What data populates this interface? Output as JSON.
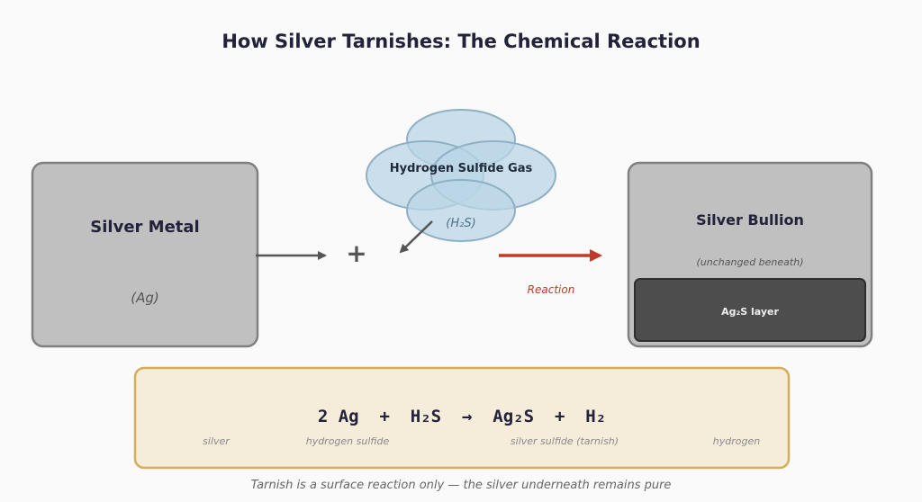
{
  "title": "How Silver Tarnishes: The Chemical Reaction",
  "silver_metal": {
    "name": "Silver Metal",
    "formula": "(Ag)"
  },
  "plus_sign": "+",
  "gas": {
    "name": "Hydrogen Sulfide Gas",
    "formula": "(H₂S)"
  },
  "reaction": {
    "label": "Reaction"
  },
  "bullion": {
    "name": "Silver Bullion",
    "note": "(unchanged beneath)",
    "layer_label": "Ag₂S layer"
  },
  "equation": {
    "text": "2 Ag  +  H₂S  →  Ag₂S  +  H₂",
    "terms": {
      "silver": "silver",
      "hydrogen_sulfide": "hydrogen sulfide",
      "silver_sulfide": "silver sulfide (tarnish)",
      "hydrogen": "hydrogen"
    }
  },
  "footnote": "Tarnish is a surface reaction only — the silver underneath remains pure",
  "colors": {
    "metal_fill": "#c0c0c0",
    "metal_stroke": "#808080",
    "cloud_fill": "#b9d6e6",
    "cloud_stroke": "#8fb0c4",
    "tarnish_fill": "#4d4d4d",
    "reaction_arrow": "#c0392b",
    "equation_bg": "#f5ecd9",
    "equation_border": "#d4ad5e"
  }
}
